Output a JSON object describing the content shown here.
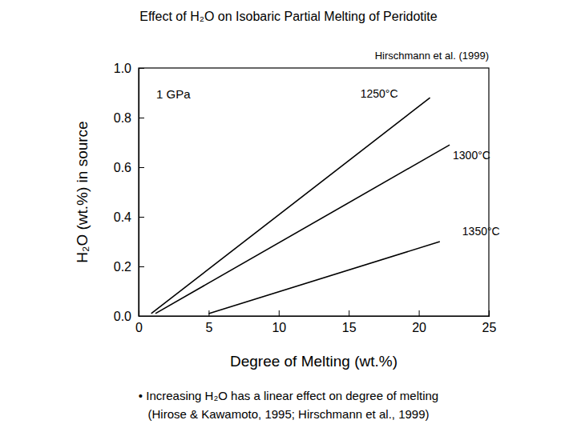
{
  "chart_data": {
    "type": "line",
    "title": "Effect of H₂O on Isobaric Partial Melting of Peridotite",
    "x_label": "Degree of Melting (wt.%)",
    "y_label": "H₂O (wt.%) in source",
    "annotations": [
      "Hirschmann et al. (1999)",
      "1 GPa",
      "• Increasing H₂O has a linear effect on degree of melting",
      "(Hirose & Kawamoto, 1995; Hirschmann et al., 1999)"
    ],
    "xlim": [
      0,
      25
    ],
    "xticks": [
      0,
      5,
      10,
      15,
      20,
      25
    ],
    "ylim": [
      0,
      1.0
    ],
    "yticks": [
      {
        "value": 0,
        "label": "0.0"
      },
      {
        "value": 0.2,
        "label": "0.2"
      },
      {
        "value": 0.4,
        "label": "0.4"
      },
      {
        "value": 0.6,
        "label": "0.6"
      },
      {
        "value": 0.8,
        "label": "0.8"
      },
      {
        "value": 1.0,
        "label": "1.0"
      }
    ],
    "grid": false,
    "series": [
      {
        "name": "1250°C",
        "color": "#000000",
        "x": [
          0.9,
          20.8
        ],
        "values": [
          0.01,
          0.88
        ]
      },
      {
        "name": "1300°C",
        "color": "#000000",
        "x": [
          1.2,
          22.2
        ],
        "values": [
          0.01,
          0.69
        ]
      },
      {
        "name": "1350°C",
        "color": "#000000",
        "x": [
          5.0,
          21.5
        ],
        "values": [
          0.01,
          0.3
        ]
      }
    ]
  }
}
